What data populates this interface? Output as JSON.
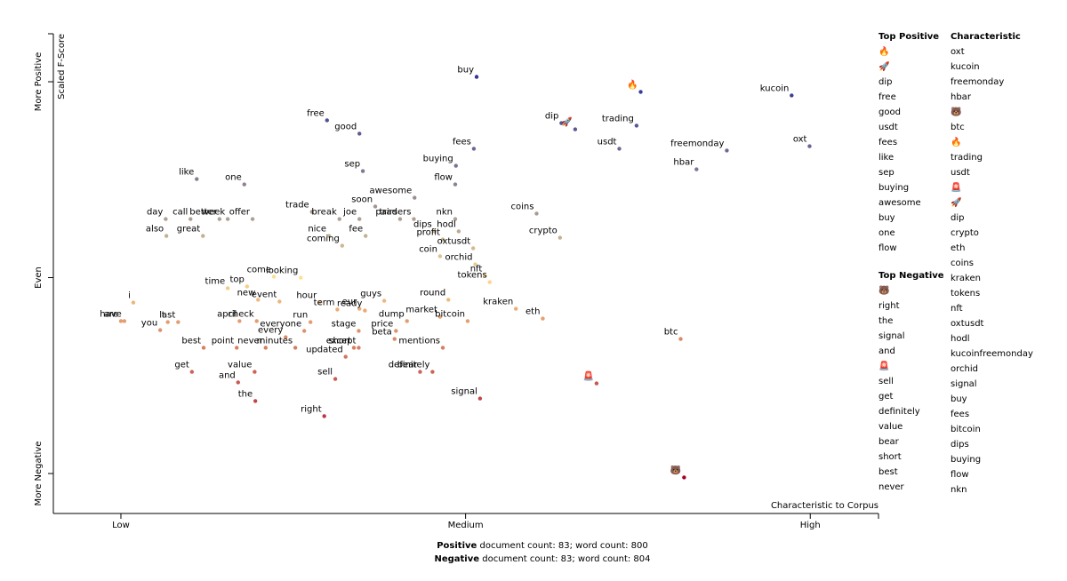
{
  "chart_data": {
    "type": "scatter",
    "y_label": "Scaled F-Score",
    "x_label": "Characteristic to Corpus",
    "xlim": [
      -0.098,
      1.099
    ],
    "ylim": [
      -1.204,
      1.245
    ],
    "xticks": [
      {
        "value": 0,
        "label": "Low"
      },
      {
        "value": 0.5,
        "label": "Medium"
      },
      {
        "value": 1,
        "label": "High"
      }
    ],
    "yticks": [
      {
        "value": -1,
        "label": "More Negative"
      },
      {
        "value": 0,
        "label": "Even"
      },
      {
        "value": 1,
        "label": "More Positive"
      }
    ],
    "colormap": "diverging",
    "points": [
      {
        "label": "buy",
        "x": 0.516,
        "y": 1.025
      },
      {
        "label": "🔥",
        "x": 0.754,
        "y": 0.948
      },
      {
        "label": "kucoin",
        "x": 0.973,
        "y": 0.93
      },
      {
        "label": "free",
        "x": 0.299,
        "y": 0.803
      },
      {
        "label": "dip",
        "x": 0.639,
        "y": 0.789
      },
      {
        "label": "🚀",
        "x": 0.659,
        "y": 0.757
      },
      {
        "label": "trading",
        "x": 0.748,
        "y": 0.776
      },
      {
        "label": "good",
        "x": 0.346,
        "y": 0.735
      },
      {
        "label": "fees",
        "x": 0.512,
        "y": 0.658
      },
      {
        "label": "usdt",
        "x": 0.723,
        "y": 0.658
      },
      {
        "label": "oxt",
        "x": 0.999,
        "y": 0.671
      },
      {
        "label": "freemonday",
        "x": 0.879,
        "y": 0.649
      },
      {
        "label": "buying",
        "x": 0.486,
        "y": 0.571
      },
      {
        "label": "hbar",
        "x": 0.835,
        "y": 0.553
      },
      {
        "label": "sep",
        "x": 0.351,
        "y": 0.544
      },
      {
        "label": "like",
        "x": 0.11,
        "y": 0.503
      },
      {
        "label": "one",
        "x": 0.179,
        "y": 0.476
      },
      {
        "label": "flow",
        "x": 0.485,
        "y": 0.476
      },
      {
        "label": "awesome",
        "x": 0.426,
        "y": 0.408
      },
      {
        "label": "soon",
        "x": 0.369,
        "y": 0.363
      },
      {
        "label": "pairs",
        "x": 0.405,
        "y": 0.299
      },
      {
        "label": "call",
        "x": 0.101,
        "y": 0.299
      },
      {
        "label": "better",
        "x": 0.143,
        "y": 0.299
      },
      {
        "label": "day",
        "x": 0.065,
        "y": 0.299
      },
      {
        "label": "offer",
        "x": 0.191,
        "y": 0.299
      },
      {
        "label": "trade",
        "x": 0.277,
        "y": 0.336
      },
      {
        "label": "break",
        "x": 0.317,
        "y": 0.299
      },
      {
        "label": "joe",
        "x": 0.346,
        "y": 0.299
      },
      {
        "label": "nkn",
        "x": 0.485,
        "y": 0.299
      },
      {
        "label": "coins",
        "x": 0.603,
        "y": 0.327
      },
      {
        "label": "also",
        "x": 0.066,
        "y": 0.213
      },
      {
        "label": "great",
        "x": 0.119,
        "y": 0.213
      },
      {
        "label": "week",
        "x": 0.155,
        "y": 0.299
      },
      {
        "label": "nice",
        "x": 0.302,
        "y": 0.213
      },
      {
        "label": "fee",
        "x": 0.355,
        "y": 0.213
      },
      {
        "label": "traders",
        "x": 0.425,
        "y": 0.299
      },
      {
        "label": "dips",
        "x": 0.455,
        "y": 0.236
      },
      {
        "label": "hodl",
        "x": 0.49,
        "y": 0.236
      },
      {
        "label": "profit",
        "x": 0.467,
        "y": 0.195
      },
      {
        "label": "crypto",
        "x": 0.637,
        "y": 0.204
      },
      {
        "label": "coming",
        "x": 0.321,
        "y": 0.163
      },
      {
        "label": "coin",
        "x": 0.463,
        "y": 0.109
      },
      {
        "label": "oxtusdt",
        "x": 0.511,
        "y": 0.15
      },
      {
        "label": "orchid",
        "x": 0.514,
        "y": 0.068
      },
      {
        "label": "nft",
        "x": 0.528,
        "y": 0.009
      },
      {
        "label": "tokens",
        "x": 0.535,
        "y": -0.023
      },
      {
        "label": "come",
        "x": 0.222,
        "y": 0.005
      },
      {
        "label": "time",
        "x": 0.155,
        "y": -0.054
      },
      {
        "label": "top",
        "x": 0.183,
        "y": -0.045
      },
      {
        "label": "looking",
        "x": 0.261,
        "y": 0.0
      },
      {
        "label": "i",
        "x": 0.018,
        "y": -0.127
      },
      {
        "label": "guys",
        "x": 0.382,
        "y": -0.118
      },
      {
        "label": "new",
        "x": 0.199,
        "y": -0.113
      },
      {
        "label": "event",
        "x": 0.23,
        "y": -0.122
      },
      {
        "label": "hour",
        "x": 0.288,
        "y": -0.127
      },
      {
        "label": "eur",
        "x": 0.346,
        "y": -0.159
      },
      {
        "label": "term",
        "x": 0.314,
        "y": -0.163
      },
      {
        "label": "ready",
        "x": 0.354,
        "y": -0.168
      },
      {
        "label": "round",
        "x": 0.475,
        "y": -0.113
      },
      {
        "label": "kraken",
        "x": 0.573,
        "y": -0.159
      },
      {
        "label": "are",
        "x": 0.0,
        "y": -0.222
      },
      {
        "label": "april",
        "x": 0.172,
        "y": -0.222
      },
      {
        "label": "check",
        "x": 0.197,
        "y": -0.222
      },
      {
        "label": "dump",
        "x": 0.415,
        "y": -0.222
      },
      {
        "label": "market",
        "x": 0.463,
        "y": -0.2
      },
      {
        "label": "bitcoin",
        "x": 0.503,
        "y": -0.222
      },
      {
        "label": "eth",
        "x": 0.612,
        "y": -0.209
      },
      {
        "label": "you",
        "x": 0.057,
        "y": -0.268
      },
      {
        "label": "last",
        "x": 0.083,
        "y": -0.227
      },
      {
        "label": "run",
        "x": 0.275,
        "y": -0.227
      },
      {
        "label": "everyone",
        "x": 0.266,
        "y": -0.272
      },
      {
        "label": "stage",
        "x": 0.345,
        "y": -0.272
      },
      {
        "label": "price",
        "x": 0.399,
        "y": -0.272
      },
      {
        "label": "have",
        "x": 0.005,
        "y": -0.222
      },
      {
        "label": "t",
        "x": 0.068,
        "y": -0.227
      },
      {
        "label": "every",
        "x": 0.239,
        "y": -0.304
      },
      {
        "label": "beta",
        "x": 0.397,
        "y": -0.313
      },
      {
        "label": "best",
        "x": 0.12,
        "y": -0.358
      },
      {
        "label": "point",
        "x": 0.168,
        "y": -0.358
      },
      {
        "label": "minutes",
        "x": 0.253,
        "y": -0.358
      },
      {
        "label": "except",
        "x": 0.345,
        "y": -0.358
      },
      {
        "label": "btc",
        "x": 0.812,
        "y": -0.313
      },
      {
        "label": "updated",
        "x": 0.326,
        "y": -0.404
      },
      {
        "label": "mentions",
        "x": 0.467,
        "y": -0.358
      },
      {
        "label": "bear",
        "x": 0.434,
        "y": -0.481
      },
      {
        "label": "never",
        "x": 0.21,
        "y": -0.358
      },
      {
        "label": "value",
        "x": 0.194,
        "y": -0.481
      },
      {
        "label": "and",
        "x": 0.17,
        "y": -0.535
      },
      {
        "label": "get",
        "x": 0.103,
        "y": -0.481
      },
      {
        "label": "short",
        "x": 0.338,
        "y": -0.358
      },
      {
        "label": "definitely",
        "x": 0.452,
        "y": -0.481
      },
      {
        "label": "sell",
        "x": 0.311,
        "y": -0.517
      },
      {
        "label": "🚨",
        "x": 0.69,
        "y": -0.54
      },
      {
        "label": "signal",
        "x": 0.521,
        "y": -0.617
      },
      {
        "label": "the",
        "x": 0.195,
        "y": -0.63
      },
      {
        "label": "right",
        "x": 0.295,
        "y": -0.707
      },
      {
        "label": "🐻",
        "x": 0.817,
        "y": -1.02
      }
    ]
  },
  "sidebar": {
    "top_positive": {
      "title": "Top Positive",
      "items": [
        "🔥",
        "🚀",
        "dip",
        "free",
        "good",
        "usdt",
        "fees",
        "like",
        "sep",
        "buying",
        "awesome",
        "buy",
        "one",
        "flow"
      ]
    },
    "top_negative": {
      "title": "Top Negative",
      "items": [
        "🐻",
        "right",
        "the",
        "signal",
        "and",
        "🚨",
        "sell",
        "get",
        "definitely",
        "value",
        "bear",
        "short",
        "best",
        "never"
      ]
    },
    "characteristic": {
      "title": "Characteristic",
      "items": [
        "oxt",
        "kucoin",
        "freemonday",
        "hbar",
        "🐻",
        "btc",
        "🔥",
        "trading",
        "usdt",
        "🚨",
        "🚀",
        "dip",
        "crypto",
        "eth",
        "coins",
        "kraken",
        "tokens",
        "nft",
        "oxtusdt",
        "hodl",
        "kucoinfreemonday",
        "orchid",
        "signal",
        "buy",
        "fees",
        "bitcoin",
        "dips",
        "buying",
        "flow",
        "nkn"
      ]
    }
  },
  "footer": {
    "positive": {
      "label": "Positive",
      "text": "document count: 83; word count: 800"
    },
    "negative": {
      "label": "Negative",
      "text": "document count: 83; word count: 804"
    }
  }
}
